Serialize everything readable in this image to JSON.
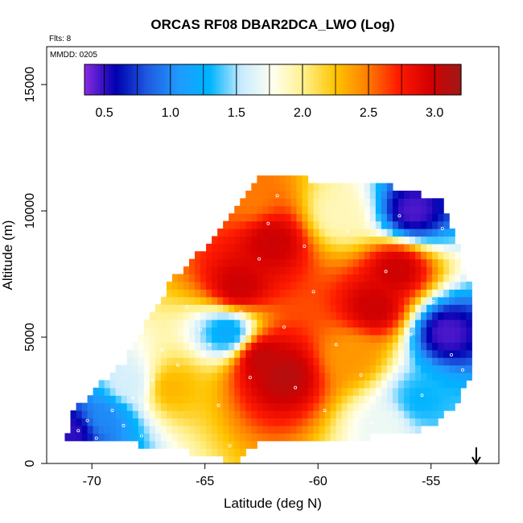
{
  "chart_data": {
    "type": "heatmap",
    "title": "ORCAS RF08 DBAR2DCA_LWO (Log)",
    "flts_label": "Flts: 8",
    "mmdd_label": "MMDD: 0205",
    "xlabel": "Latitude (deg N)",
    "ylabel": "Altitude (m)",
    "xlim": [
      -72,
      -52
    ],
    "ylim": [
      0,
      16500
    ],
    "x_ticks": [
      -70,
      -65,
      -60,
      -55
    ],
    "x_tick_labels": [
      "-70",
      "-65",
      "-60",
      "-55"
    ],
    "y_ticks": [
      0,
      5000,
      10000,
      15000
    ],
    "y_tick_labels": [
      "0",
      "5000",
      "10000",
      "15000"
    ],
    "colorbar": {
      "range": [
        0.35,
        3.2
      ],
      "ticks": [
        0.5,
        1.0,
        1.5,
        2.0,
        2.5,
        3.0
      ],
      "tick_labels": [
        "0.5",
        "1.0",
        "1.5",
        "2.0",
        "2.5",
        "3.0"
      ],
      "colors": [
        "#8a2be2",
        "#0000b0",
        "#1e5ae0",
        "#1f9bff",
        "#00b4ff",
        "#c8ebff",
        "#fffff0",
        "#fff08a",
        "#ffc400",
        "#ff7f00",
        "#ff1a00",
        "#d40000",
        "#a01818"
      ]
    },
    "marker_latitude": -53,
    "envelope": {
      "lower": [
        [
          -71.2,
          800
        ],
        [
          -69,
          800
        ],
        [
          -67,
          700
        ],
        [
          -64,
          100
        ],
        [
          -63.5,
          100
        ],
        [
          -63.2,
          700
        ],
        [
          -61,
          900
        ],
        [
          -58,
          1000
        ],
        [
          -55,
          1400
        ],
        [
          -54,
          2300
        ],
        [
          -53.2,
          3400
        ]
      ],
      "upper": [
        [
          -71.2,
          800
        ],
        [
          -70.8,
          2100
        ],
        [
          -68.5,
          4100
        ],
        [
          -67.5,
          5700
        ],
        [
          -66.5,
          7200
        ],
        [
          -64.5,
          9000
        ],
        [
          -62.5,
          11400
        ],
        [
          -57,
          11000
        ],
        [
          -54.5,
          10400
        ],
        [
          -54,
          9000
        ],
        [
          -53.3,
          7200
        ],
        [
          -53.2,
          3400
        ]
      ]
    },
    "field_features": [
      {
        "lat": -61.5,
        "alt": 3500,
        "value": 3.1
      },
      {
        "lat": -62.5,
        "alt": 4200,
        "value": 3.05
      },
      {
        "lat": -63.5,
        "alt": 7000,
        "value": 3.0
      },
      {
        "lat": -62.0,
        "alt": 8800,
        "value": 3.0
      },
      {
        "lat": -56.5,
        "alt": 7700,
        "value": 3.0
      },
      {
        "lat": -57.5,
        "alt": 6200,
        "value": 3.0
      },
      {
        "lat": -63.0,
        "alt": 10500,
        "value": 2.5
      },
      {
        "lat": -64.0,
        "alt": 5200,
        "value": 1.2
      },
      {
        "lat": -55.8,
        "alt": 10000,
        "value": 0.45
      },
      {
        "lat": -54.3,
        "alt": 5200,
        "value": 0.45
      },
      {
        "lat": -55.5,
        "alt": 2500,
        "value": 1.3
      },
      {
        "lat": -57.0,
        "alt": 1500,
        "value": 1.7
      },
      {
        "lat": -70.8,
        "alt": 1300,
        "value": 0.5
      },
      {
        "lat": -69.5,
        "alt": 1800,
        "value": 1.0
      },
      {
        "lat": -68.3,
        "alt": 3200,
        "value": 1.6
      },
      {
        "lat": -66.5,
        "alt": 3000,
        "value": 2.3
      },
      {
        "lat": -59.0,
        "alt": 9900,
        "value": 1.9
      },
      {
        "lat": -58.5,
        "alt": 4300,
        "value": 2.4
      }
    ],
    "sample_points": [
      [
        -70.6,
        1300
      ],
      [
        -70.2,
        1700
      ],
      [
        -69.8,
        1000
      ],
      [
        -69.1,
        2100
      ],
      [
        -68.6,
        1500
      ],
      [
        -68.2,
        2600
      ],
      [
        -67.8,
        1100
      ],
      [
        -67.3,
        3300
      ],
      [
        -66.9,
        4500
      ],
      [
        -66.2,
        3900
      ],
      [
        -65.8,
        6200
      ],
      [
        -65.2,
        5300
      ],
      [
        -64.8,
        4700
      ],
      [
        -64.4,
        2300
      ],
      [
        -63.9,
        700
      ],
      [
        -63.4,
        6000
      ],
      [
        -63.0,
        3400
      ],
      [
        -62.6,
        8100
      ],
      [
        -62.2,
        9500
      ],
      [
        -61.8,
        10600
      ],
      [
        -61.5,
        5400
      ],
      [
        -61.0,
        3000
      ],
      [
        -60.6,
        8600
      ],
      [
        -60.2,
        6800
      ],
      [
        -59.7,
        2100
      ],
      [
        -59.2,
        4700
      ],
      [
        -58.7,
        9200
      ],
      [
        -58.1,
        3500
      ],
      [
        -57.6,
        1600
      ],
      [
        -57.0,
        7600
      ],
      [
        -56.4,
        9800
      ],
      [
        -55.9,
        5100
      ],
      [
        -55.4,
        2700
      ],
      [
        -54.9,
        6400
      ],
      [
        -54.5,
        9300
      ],
      [
        -54.1,
        4300
      ],
      [
        -53.6,
        3700
      ]
    ]
  }
}
